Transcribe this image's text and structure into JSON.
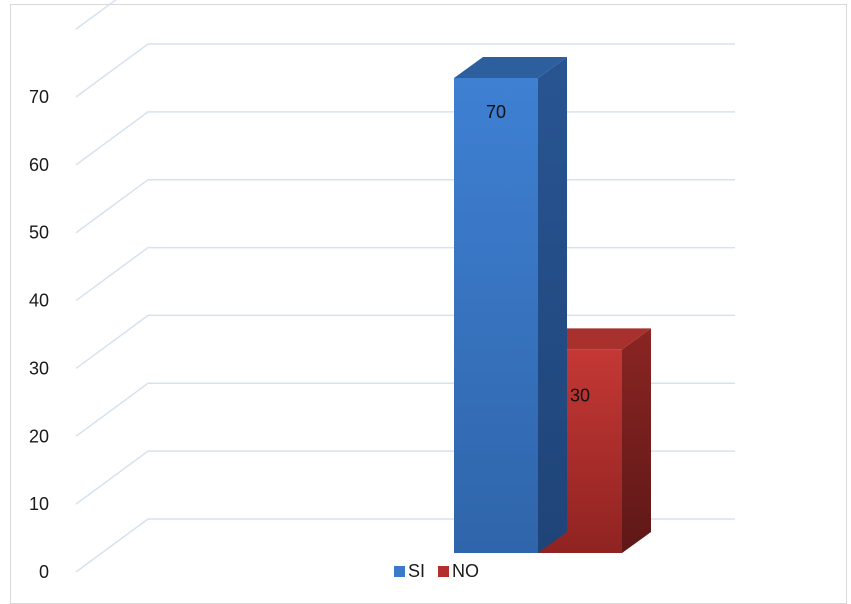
{
  "chart_data": {
    "type": "bar",
    "style": "3d-clustered",
    "categories": [
      ""
    ],
    "series": [
      {
        "name": "SI",
        "values": [
          70
        ],
        "color": "#3b79c9"
      },
      {
        "name": "NO",
        "values": [
          30
        ],
        "color": "#b32f2c"
      }
    ],
    "ylim": [
      0,
      70
    ],
    "yticks": [
      "0",
      "10",
      "20",
      "30",
      "40",
      "50",
      "60",
      "70"
    ],
    "data_labels": [
      "70",
      "30"
    ],
    "grid": true,
    "legend": "bottom"
  }
}
